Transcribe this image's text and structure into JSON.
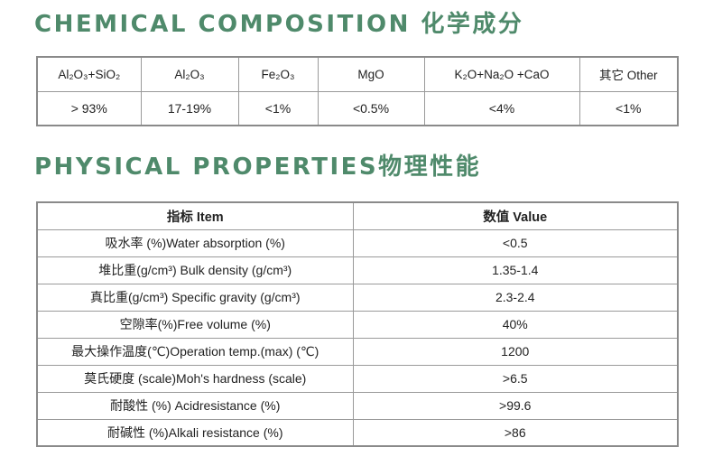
{
  "composition": {
    "title": "CHEMICAL COMPOSITION 化学成分",
    "headers": [
      "Al₂O₃+SiO₂",
      "Al₂O₃",
      "Fe₂O₃",
      "MgO",
      "K₂O+Na₂O +CaO",
      "其它 Other"
    ],
    "values": [
      "> 93%",
      "17-19%",
      "<1%",
      "<0.5%",
      "<4%",
      "<1%"
    ]
  },
  "physical": {
    "title": "PHYSICAL PROPERTIES物理性能",
    "headers": [
      "指标 Item",
      "数值 Value"
    ],
    "rows": [
      {
        "item": "吸水率 (%)Water absorption (%)",
        "value": "<0.5"
      },
      {
        "item": "堆比重(g/cm³) Bulk density (g/cm³)",
        "value": "1.35-1.4"
      },
      {
        "item": "真比重(g/cm³) Specific gravity (g/cm³)",
        "value": "2.3-2.4"
      },
      {
        "item": "空隙率(%)Free volume (%)",
        "value": "40%"
      },
      {
        "item": "最大操作温度(℃)Operation temp.(max) (℃)",
        "value": "1200"
      },
      {
        "item": "莫氏硬度 (scale)Moh's hardness (scale)",
        "value": ">6.5"
      },
      {
        "item": "耐酸性 (%) Acidresistance (%)",
        "value": ">99.6"
      },
      {
        "item": "耐碱性 (%)Alkali resistance (%)",
        "value": ">86"
      }
    ]
  }
}
